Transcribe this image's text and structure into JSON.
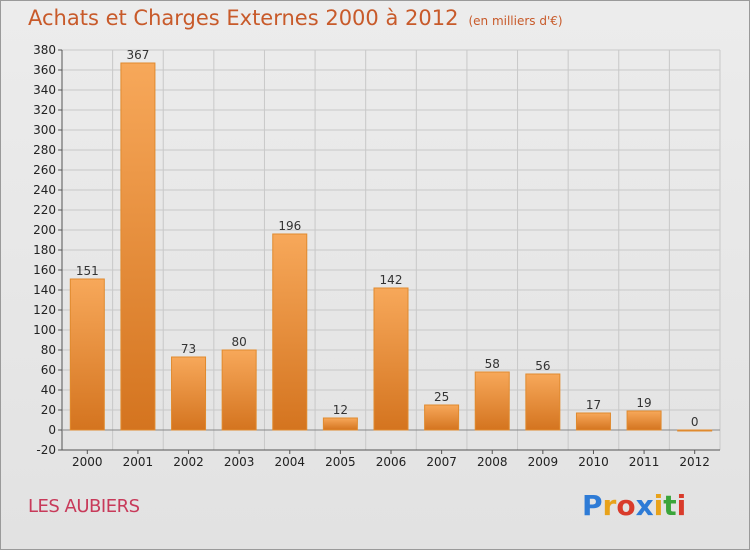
{
  "title": "Achats et Charges Externes 2000 à 2012",
  "title_unit": "(en milliers d'€)",
  "commune": "LES AUBIERS",
  "logo": {
    "text": "Proxiti",
    "letters": [
      {
        "ch": "P",
        "color": "#2e7bd6"
      },
      {
        "ch": "r",
        "color": "#e8a21a"
      },
      {
        "ch": "o",
        "color": "#d93b2b"
      },
      {
        "ch": "x",
        "color": "#2e7bd6"
      },
      {
        "ch": "i",
        "color": "#e8a21a"
      },
      {
        "ch": "t",
        "color": "#3aa53a"
      },
      {
        "ch": "i",
        "color": "#d93b2b"
      }
    ]
  },
  "colors": {
    "bar_light": "#f7a85a",
    "bar_dark": "#d4741f",
    "bar_edge": "#e08a2e",
    "title": "#c85a2a",
    "commune": "#c83a5a",
    "grid": "#c8c8c8"
  },
  "chart_data": {
    "type": "bar",
    "title": "Achats et Charges Externes 2000 à 2012",
    "subtitle": "(en milliers d'€)",
    "xlabel": "",
    "ylabel": "",
    "categories": [
      "2000",
      "2001",
      "2002",
      "2003",
      "2004",
      "2005",
      "2006",
      "2007",
      "2008",
      "2009",
      "2010",
      "2011",
      "2012"
    ],
    "values": [
      151,
      367,
      73,
      80,
      196,
      12,
      142,
      25,
      58,
      56,
      17,
      19,
      0
    ],
    "ylim": [
      -20,
      380
    ],
    "yticks": [
      -20,
      0,
      20,
      40,
      60,
      80,
      100,
      120,
      140,
      160,
      180,
      200,
      220,
      240,
      260,
      280,
      300,
      320,
      340,
      360,
      380
    ],
    "grid": true,
    "legend": "none"
  }
}
